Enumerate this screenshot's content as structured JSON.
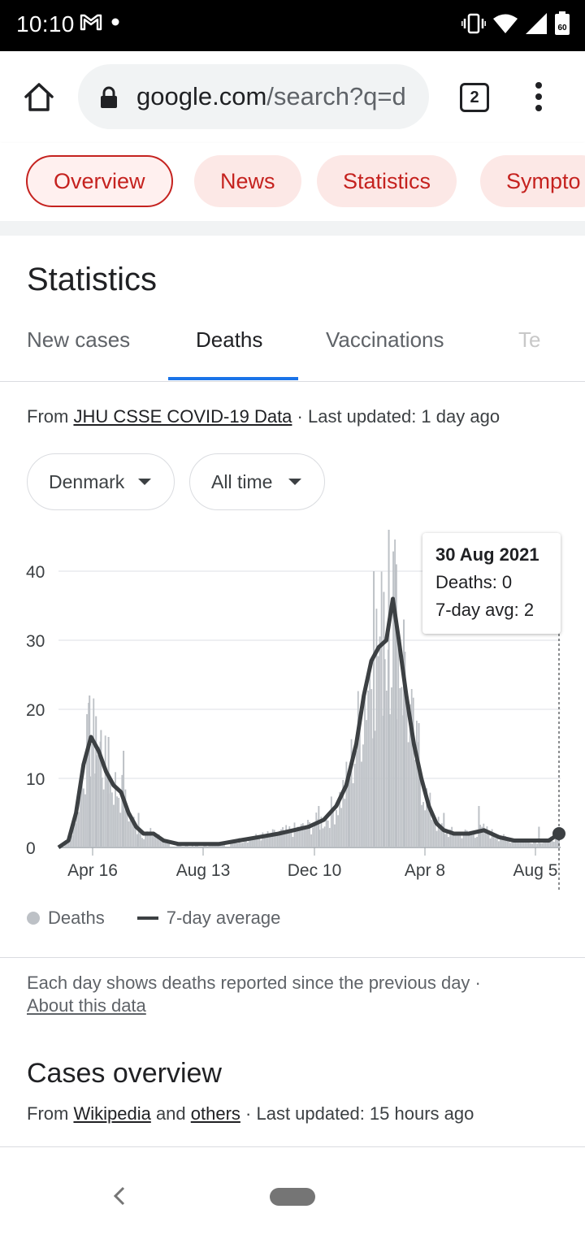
{
  "status_bar": {
    "time": "10:10",
    "left_icons": [
      "gmail-icon",
      "dot-icon"
    ],
    "right_icons": [
      "vibrate-icon",
      "wifi-icon",
      "signal-icon",
      "battery-icon"
    ]
  },
  "browser": {
    "url_host": "google.com",
    "url_path": "/search?q=d",
    "tab_count": "2"
  },
  "chips": [
    {
      "label": "Overview",
      "active": true
    },
    {
      "label": "News",
      "active": false
    },
    {
      "label": "Statistics",
      "active": false
    },
    {
      "label": "Sympto",
      "active": false
    }
  ],
  "stats": {
    "title": "Statistics",
    "tabs": [
      {
        "label": "New cases",
        "active": false
      },
      {
        "label": "Deaths",
        "active": true
      },
      {
        "label": "Vaccinations",
        "active": false
      },
      {
        "label": "Te",
        "active": false
      }
    ],
    "source_prefix": "From ",
    "source_link": "JHU CSSE COVID-19 Data",
    "source_suffix": " · Last updated: 1 day ago",
    "country": "Denmark",
    "range": "All time"
  },
  "tooltip": {
    "date": "30 Aug 2021",
    "deaths": "Deaths: 0",
    "avg": "7-day avg: 2"
  },
  "legend": {
    "series1": "Deaths",
    "series2": "7-day average"
  },
  "note": {
    "text": "Each day shows deaths reported since the previous day",
    "sep": " · ",
    "link": "About this data"
  },
  "cases_overview": {
    "title": "Cases overview",
    "prefix": "From ",
    "link1": "Wikipedia",
    "mid": " and ",
    "link2": "others",
    "suffix": " · Last updated: 15 hours ago"
  },
  "colors": {
    "chip_red": "#c5221f",
    "chip_bg": "#fce8e6",
    "bars": "#bdc1c6",
    "avg_line": "#3c4043",
    "tab_blue": "#1a73e8"
  },
  "chart_data": {
    "type": "bar",
    "ylim": [
      0,
      45
    ],
    "yticks": [
      "0",
      "10",
      "20",
      "30",
      "40"
    ],
    "xticks": [
      "Apr 16",
      "Aug 13",
      "Dec 10",
      "Apr 8",
      "Aug 5"
    ],
    "series": [
      {
        "name": "Deaths",
        "style": "bars"
      },
      {
        "name": "7-day average",
        "style": "line"
      }
    ],
    "avg_points": [
      [
        0,
        0
      ],
      [
        0.02,
        1
      ],
      [
        0.035,
        5
      ],
      [
        0.05,
        12
      ],
      [
        0.065,
        16
      ],
      [
        0.08,
        14
      ],
      [
        0.095,
        11
      ],
      [
        0.11,
        9
      ],
      [
        0.125,
        8
      ],
      [
        0.14,
        5
      ],
      [
        0.155,
        3
      ],
      [
        0.17,
        2
      ],
      [
        0.19,
        2
      ],
      [
        0.21,
        1
      ],
      [
        0.24,
        0.5
      ],
      [
        0.28,
        0.5
      ],
      [
        0.32,
        0.5
      ],
      [
        0.36,
        1
      ],
      [
        0.4,
        1.5
      ],
      [
        0.44,
        2
      ],
      [
        0.47,
        2.5
      ],
      [
        0.5,
        3
      ],
      [
        0.53,
        4
      ],
      [
        0.555,
        6
      ],
      [
        0.575,
        9
      ],
      [
        0.595,
        15
      ],
      [
        0.61,
        22
      ],
      [
        0.625,
        27
      ],
      [
        0.64,
        29
      ],
      [
        0.655,
        30
      ],
      [
        0.668,
        36
      ],
      [
        0.68,
        30
      ],
      [
        0.695,
        22
      ],
      [
        0.71,
        15
      ],
      [
        0.725,
        10
      ],
      [
        0.74,
        6
      ],
      [
        0.755,
        3.5
      ],
      [
        0.77,
        2.5
      ],
      [
        0.79,
        2
      ],
      [
        0.82,
        2
      ],
      [
        0.85,
        2.5
      ],
      [
        0.88,
        1.5
      ],
      [
        0.91,
        1
      ],
      [
        0.95,
        1
      ],
      [
        0.98,
        1
      ],
      [
        1.0,
        2
      ]
    ],
    "spikes": [
      [
        0.062,
        22
      ],
      [
        0.075,
        19
      ],
      [
        0.085,
        17
      ],
      [
        0.1,
        16
      ],
      [
        0.13,
        14
      ],
      [
        0.16,
        5
      ],
      [
        0.52,
        6
      ],
      [
        0.58,
        10
      ],
      [
        0.63,
        40
      ],
      [
        0.65,
        37
      ],
      [
        0.66,
        46
      ],
      [
        0.675,
        41
      ],
      [
        0.69,
        33
      ],
      [
        0.72,
        18
      ],
      [
        0.77,
        5
      ],
      [
        0.84,
        6
      ],
      [
        0.96,
        3
      ]
    ],
    "last_value": 2
  }
}
